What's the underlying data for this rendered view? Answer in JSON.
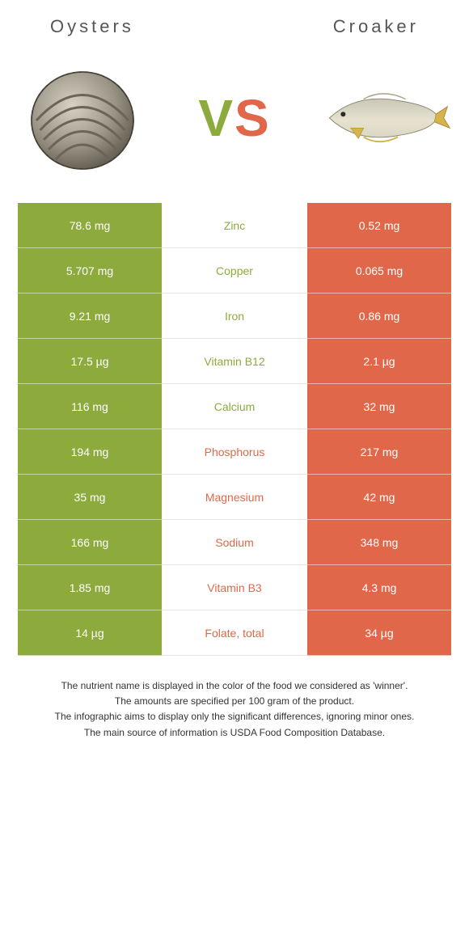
{
  "header": {
    "left_title": "Oysters",
    "right_title": "Croaker"
  },
  "vs": {
    "v": "V",
    "s": "S"
  },
  "colors": {
    "left_bg": "#8cab3c",
    "right_bg": "#e0674a",
    "left_text": "#8cab3c",
    "right_text": "#e0674a"
  },
  "rows": [
    {
      "left": "78.6 mg",
      "label": "Zinc",
      "right": "0.52 mg",
      "winner": "left"
    },
    {
      "left": "5.707 mg",
      "label": "Copper",
      "right": "0.065 mg",
      "winner": "left"
    },
    {
      "left": "9.21 mg",
      "label": "Iron",
      "right": "0.86 mg",
      "winner": "left"
    },
    {
      "left": "17.5 µg",
      "label": "Vitamin B12",
      "right": "2.1 µg",
      "winner": "left"
    },
    {
      "left": "116 mg",
      "label": "Calcium",
      "right": "32 mg",
      "winner": "left"
    },
    {
      "left": "194 mg",
      "label": "Phosphorus",
      "right": "217 mg",
      "winner": "right"
    },
    {
      "left": "35 mg",
      "label": "Magnesium",
      "right": "42 mg",
      "winner": "right"
    },
    {
      "left": "166 mg",
      "label": "Sodium",
      "right": "348 mg",
      "winner": "right"
    },
    {
      "left": "1.85 mg",
      "label": "Vitamin B3",
      "right": "4.3 mg",
      "winner": "right"
    },
    {
      "left": "14 µg",
      "label": "Folate, total",
      "right": "34 µg",
      "winner": "right"
    }
  ],
  "footer": {
    "l1": "The nutrient name is displayed in the color of the food we considered as 'winner'.",
    "l2": "The amounts are specified per 100 gram of the product.",
    "l3": "The infographic aims to display only the significant differences, ignoring minor ones.",
    "l4": "The main source of information is USDA Food Composition Database."
  }
}
